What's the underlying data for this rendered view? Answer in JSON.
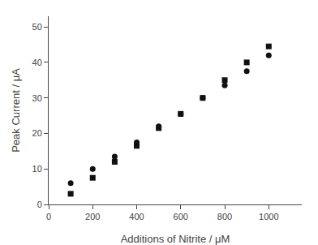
{
  "chart_data": {
    "type": "scatter",
    "xlabel": "Additions of Nitrite / μM",
    "ylabel": "Peak Current / μA",
    "x": [
      100,
      200,
      300,
      400,
      500,
      600,
      700,
      800,
      900,
      1000
    ],
    "series": [
      {
        "marker": "square",
        "color": "#111111",
        "values": [
          3.0,
          7.5,
          12.0,
          16.5,
          21.5,
          25.5,
          30.0,
          35.0,
          40.0,
          44.5
        ]
      },
      {
        "marker": "circle",
        "color": "#111111",
        "values": [
          6.0,
          10.0,
          13.5,
          17.5,
          22.0,
          25.5,
          30.0,
          33.5,
          37.5,
          42.0
        ]
      }
    ],
    "xlim": [
      0,
      1150
    ],
    "ylim": [
      0,
      53
    ],
    "xticks": [
      0,
      200,
      400,
      600,
      800,
      1000
    ],
    "yticks": [
      0,
      10,
      20,
      30,
      40,
      50
    ],
    "grid": false
  }
}
